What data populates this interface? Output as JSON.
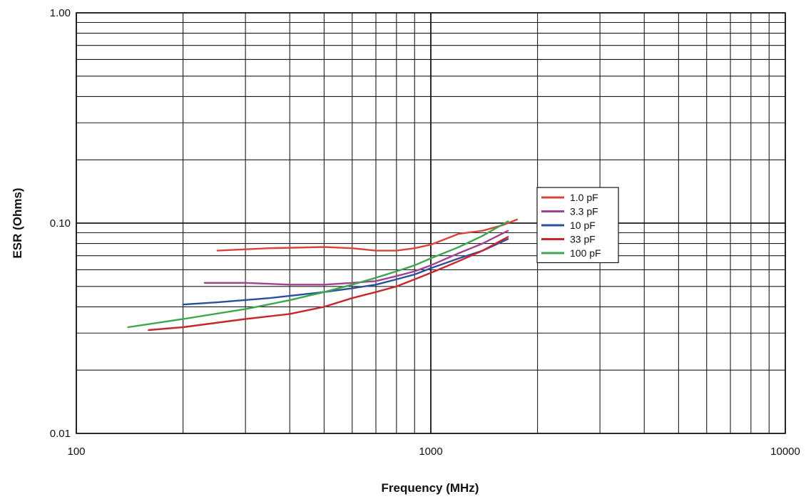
{
  "chart_data": {
    "type": "line",
    "title": "",
    "xlabel": "Frequency (MHz)",
    "ylabel": "ESR (Ohms)",
    "x_scale": "log",
    "y_scale": "log",
    "xlim": [
      100,
      10000
    ],
    "ylim": [
      0.01,
      1.0
    ],
    "x_tick_labels": [
      "100",
      "1000",
      "10000"
    ],
    "y_tick_labels": [
      "0.01",
      "0.10",
      "1.00"
    ],
    "grid": true,
    "legend_position": "center-right",
    "series": [
      {
        "name": "1.0 pF",
        "color": "#d9433a",
        "points": [
          [
            250,
            0.074
          ],
          [
            350,
            0.076
          ],
          [
            500,
            0.077
          ],
          [
            600,
            0.076
          ],
          [
            700,
            0.074
          ],
          [
            800,
            0.074
          ],
          [
            900,
            0.076
          ],
          [
            1000,
            0.079
          ],
          [
            1100,
            0.084
          ],
          [
            1200,
            0.089
          ],
          [
            1400,
            0.092
          ],
          [
            1600,
            0.098
          ],
          [
            1750,
            0.104
          ]
        ]
      },
      {
        "name": "3.3 pF",
        "color": "#a04090",
        "points": [
          [
            230,
            0.052
          ],
          [
            300,
            0.052
          ],
          [
            400,
            0.051
          ],
          [
            500,
            0.051
          ],
          [
            600,
            0.052
          ],
          [
            700,
            0.053
          ],
          [
            800,
            0.056
          ],
          [
            900,
            0.059
          ],
          [
            1000,
            0.063
          ],
          [
            1200,
            0.072
          ],
          [
            1400,
            0.08
          ],
          [
            1650,
            0.092
          ]
        ]
      },
      {
        "name": "10 pF",
        "color": "#2a4f9e",
        "points": [
          [
            200,
            0.041
          ],
          [
            250,
            0.042
          ],
          [
            350,
            0.044
          ],
          [
            500,
            0.047
          ],
          [
            600,
            0.049
          ],
          [
            700,
            0.051
          ],
          [
            800,
            0.054
          ],
          [
            900,
            0.057
          ],
          [
            1000,
            0.061
          ],
          [
            1200,
            0.068
          ],
          [
            1400,
            0.074
          ],
          [
            1650,
            0.084
          ]
        ]
      },
      {
        "name": "33 pF",
        "color": "#c8262c",
        "points": [
          [
            160,
            0.031
          ],
          [
            200,
            0.032
          ],
          [
            300,
            0.035
          ],
          [
            400,
            0.037
          ],
          [
            500,
            0.04
          ],
          [
            600,
            0.044
          ],
          [
            700,
            0.047
          ],
          [
            800,
            0.05
          ],
          [
            900,
            0.054
          ],
          [
            1000,
            0.058
          ],
          [
            1200,
            0.066
          ],
          [
            1400,
            0.074
          ],
          [
            1650,
            0.086
          ]
        ]
      },
      {
        "name": "100 pF",
        "color": "#3aa84a",
        "points": [
          [
            140,
            0.032
          ],
          [
            200,
            0.035
          ],
          [
            300,
            0.039
          ],
          [
            400,
            0.043
          ],
          [
            500,
            0.047
          ],
          [
            600,
            0.051
          ],
          [
            700,
            0.055
          ],
          [
            800,
            0.059
          ],
          [
            900,
            0.063
          ],
          [
            1000,
            0.068
          ],
          [
            1200,
            0.077
          ],
          [
            1400,
            0.087
          ],
          [
            1650,
            0.102
          ]
        ]
      }
    ]
  }
}
